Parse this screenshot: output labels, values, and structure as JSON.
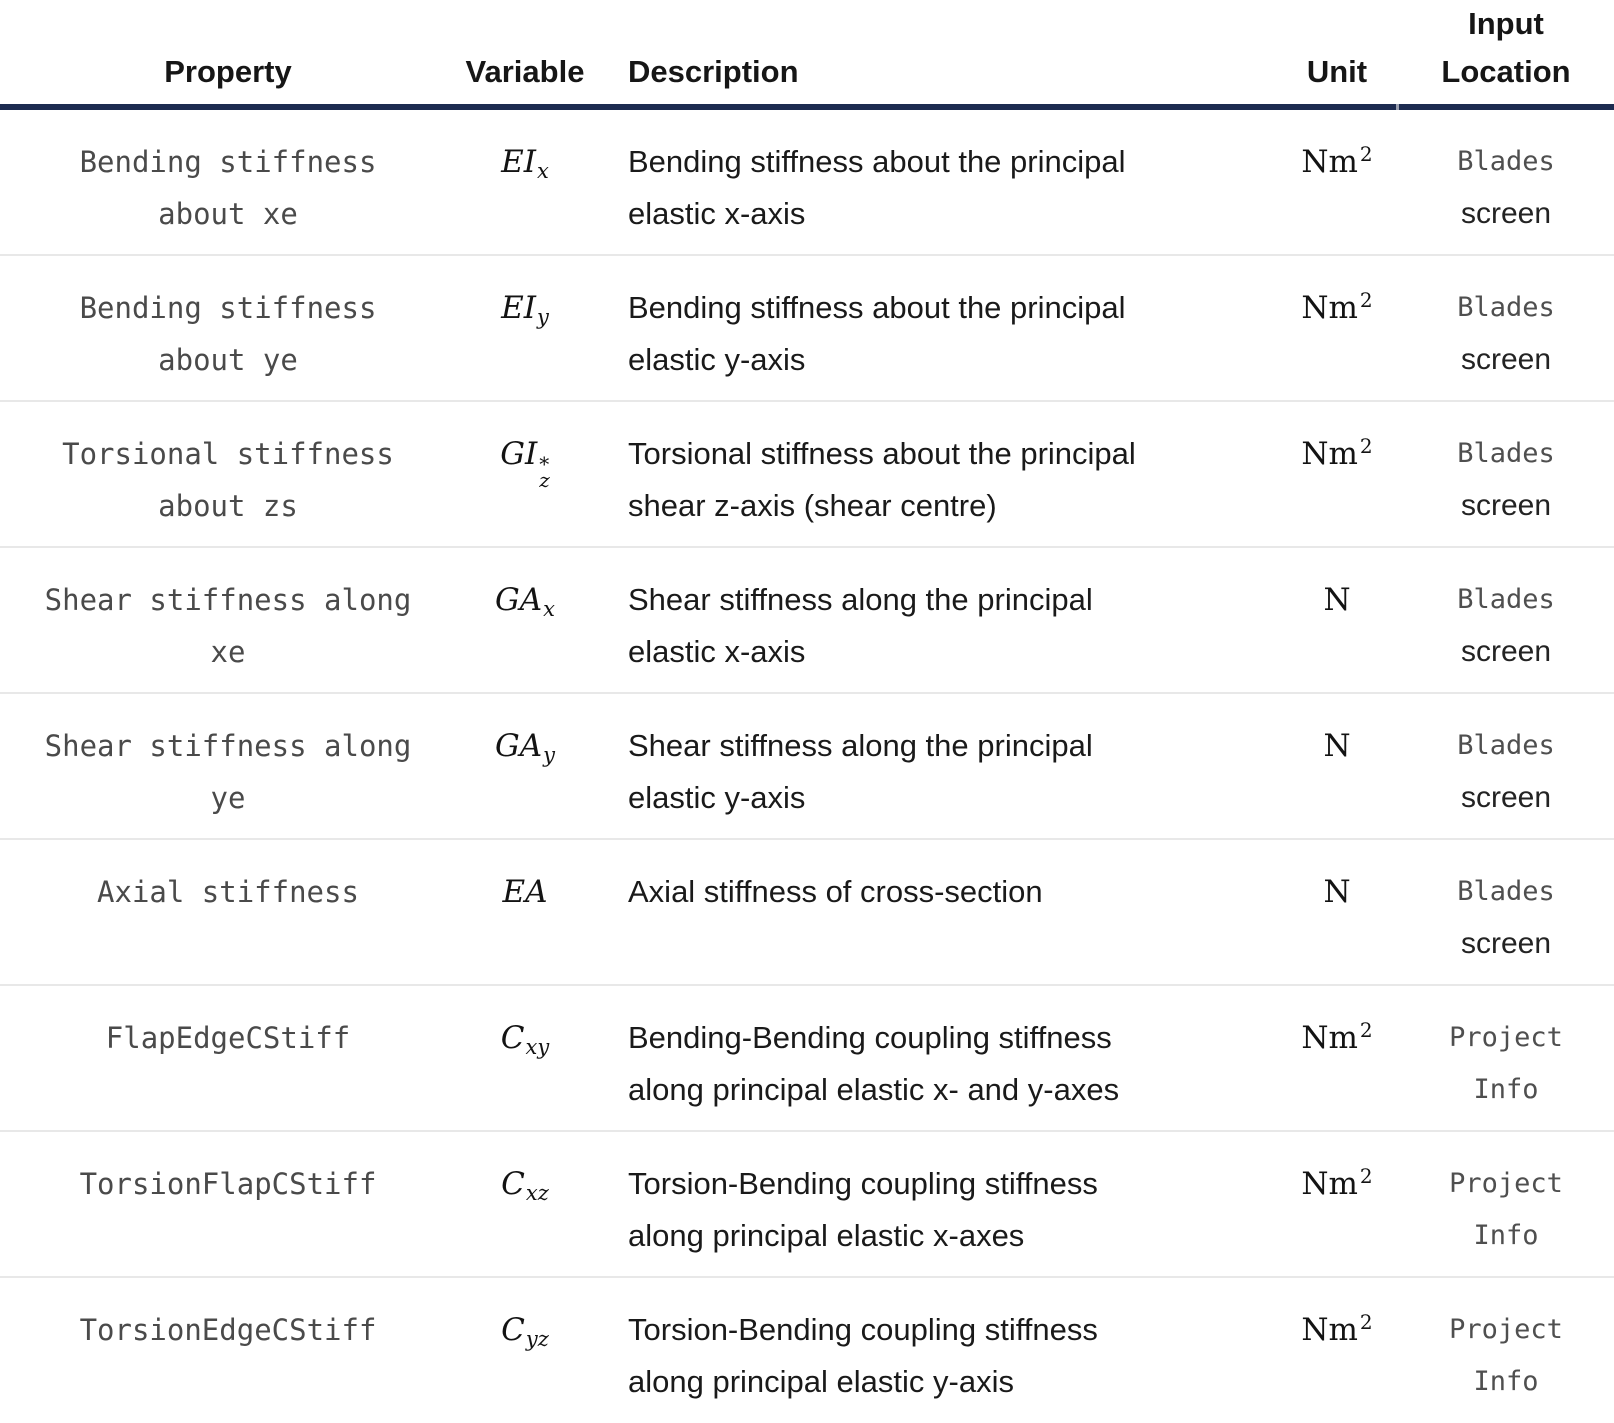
{
  "colors": {
    "header_rule": "#1d2b50",
    "row_rule": "#e8e8e8",
    "code_text": "#4a4a4a",
    "body_text": "#1a1a1a"
  },
  "table": {
    "columns": [
      "Property",
      "Variable",
      "Description",
      "Unit",
      "Input Location"
    ],
    "rows": [
      {
        "property_lines": [
          "Bending stiffness",
          "about xe"
        ],
        "variable": {
          "base": "EI",
          "sub": "x",
          "sup": ""
        },
        "description_lines": [
          "Bending stiffness about the principal",
          "elastic x-axis"
        ],
        "unit": {
          "base": "Nm",
          "sup": "2"
        },
        "location_lines": [
          {
            "text": "Blades",
            "style": "code"
          },
          {
            "text": "screen",
            "style": "plain"
          }
        ]
      },
      {
        "property_lines": [
          "Bending stiffness",
          "about ye"
        ],
        "variable": {
          "base": "EI",
          "sub": "y",
          "sup": ""
        },
        "description_lines": [
          "Bending stiffness about the principal",
          "elastic y-axis"
        ],
        "unit": {
          "base": "Nm",
          "sup": "2"
        },
        "location_lines": [
          {
            "text": "Blades",
            "style": "code"
          },
          {
            "text": "screen",
            "style": "plain"
          }
        ]
      },
      {
        "property_lines": [
          "Torsional stiffness",
          "about zs"
        ],
        "variable": {
          "base": "GI",
          "sub": "z",
          "sup": "*"
        },
        "description_lines": [
          "Torsional stiffness about the principal",
          "shear z-axis (shear centre)"
        ],
        "unit": {
          "base": "Nm",
          "sup": "2"
        },
        "location_lines": [
          {
            "text": "Blades",
            "style": "code"
          },
          {
            "text": "screen",
            "style": "plain"
          }
        ]
      },
      {
        "property_lines": [
          "Shear stiffness along",
          "xe"
        ],
        "variable": {
          "base": "GA",
          "sub": "x",
          "sup": ""
        },
        "description_lines": [
          "Shear stiffness along the principal",
          "elastic x-axis"
        ],
        "unit": {
          "base": "N",
          "sup": ""
        },
        "location_lines": [
          {
            "text": "Blades",
            "style": "code"
          },
          {
            "text": "screen",
            "style": "plain"
          }
        ]
      },
      {
        "property_lines": [
          "Shear stiffness along",
          "ye"
        ],
        "variable": {
          "base": "GA",
          "sub": "y",
          "sup": ""
        },
        "description_lines": [
          "Shear stiffness along the principal",
          "elastic y-axis"
        ],
        "unit": {
          "base": "N",
          "sup": ""
        },
        "location_lines": [
          {
            "text": "Blades",
            "style": "code"
          },
          {
            "text": "screen",
            "style": "plain"
          }
        ]
      },
      {
        "property_lines": [
          "Axial stiffness"
        ],
        "variable": {
          "base": "EA",
          "sub": "",
          "sup": ""
        },
        "description_lines": [
          "Axial stiffness of cross-section"
        ],
        "unit": {
          "base": "N",
          "sup": ""
        },
        "location_lines": [
          {
            "text": "Blades",
            "style": "code"
          },
          {
            "text": "screen",
            "style": "plain"
          }
        ]
      },
      {
        "property_lines": [
          "FlapEdgeCStiff"
        ],
        "variable": {
          "base": "C",
          "sub": "xy",
          "sup": ""
        },
        "description_lines": [
          "Bending-Bending coupling stiffness",
          "along principal elastic x- and y-axes"
        ],
        "unit": {
          "base": "Nm",
          "sup": "2"
        },
        "location_lines": [
          {
            "text": "Project",
            "style": "code"
          },
          {
            "text": "Info",
            "style": "code"
          }
        ]
      },
      {
        "property_lines": [
          "TorsionFlapCStiff"
        ],
        "variable": {
          "base": "C",
          "sub": "xz",
          "sup": ""
        },
        "description_lines": [
          "Torsion-Bending coupling stiffness",
          "along principal elastic x-axes"
        ],
        "unit": {
          "base": "Nm",
          "sup": "2"
        },
        "location_lines": [
          {
            "text": "Project",
            "style": "code"
          },
          {
            "text": "Info",
            "style": "code"
          }
        ]
      },
      {
        "property_lines": [
          "TorsionEdgeCStiff"
        ],
        "variable": {
          "base": "C",
          "sub": "yz",
          "sup": ""
        },
        "description_lines": [
          "Torsion-Bending coupling stiffness",
          "along principal elastic y-axis"
        ],
        "unit": {
          "base": "Nm",
          "sup": "2"
        },
        "location_lines": [
          {
            "text": "Project",
            "style": "code"
          },
          {
            "text": "Info",
            "style": "code"
          }
        ]
      }
    ]
  }
}
